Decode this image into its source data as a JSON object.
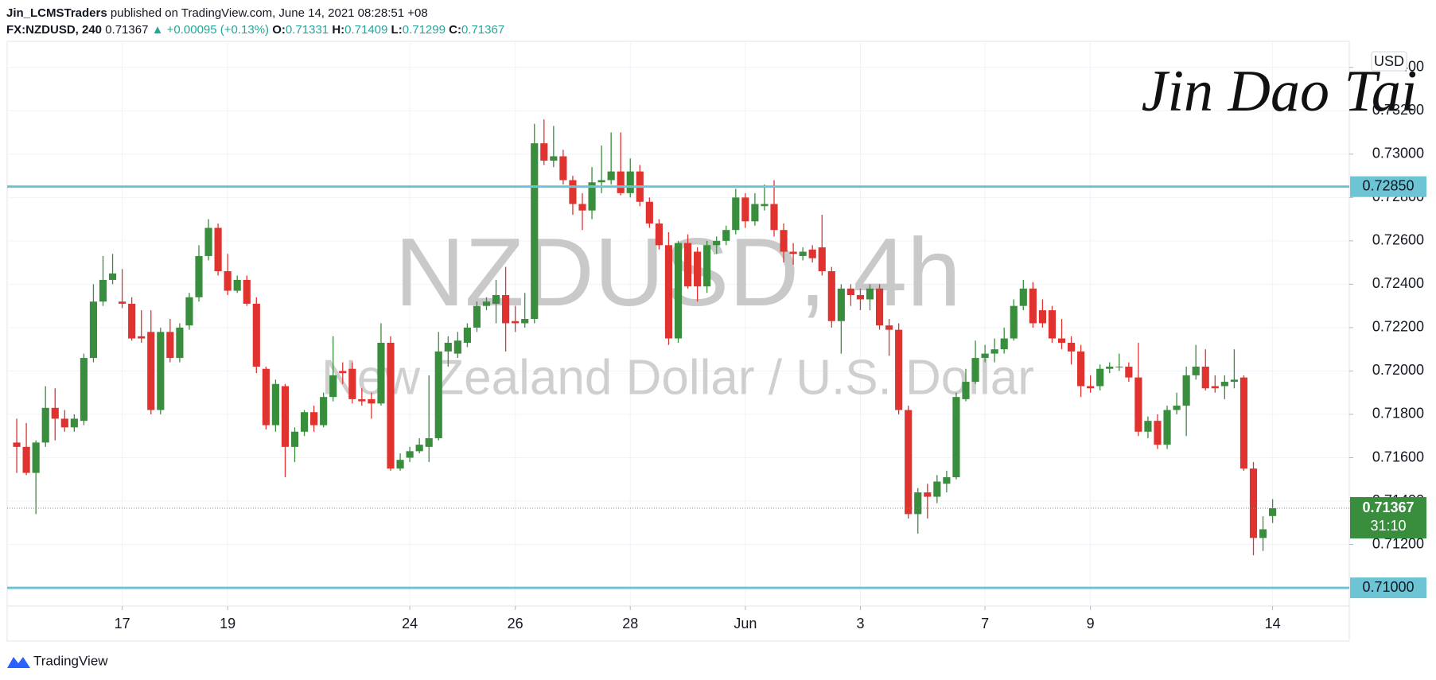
{
  "header": {
    "author": "Jin_LCMSTraders",
    "published": "published on TradingView.com, June 14, 2021 08:28:51 +08",
    "symbol": "FX:NZDUSD, 240",
    "price": "0.71367",
    "change": "▲ +0.00095 (+0.13%)",
    "open_label": "O:",
    "open": "0.71331",
    "high_label": "H:",
    "high": "0.71409",
    "low_label": "L:",
    "low": "0.71299",
    "close_label": "C:",
    "close": "0.71367"
  },
  "watermark": {
    "title": "NZDUSD, 4h",
    "subtitle": "New Zealand Dollar / U.S. Dollar"
  },
  "signature": "Jin Dao Tai",
  "footer": "TradingView",
  "chart_data": {
    "type": "candlestick",
    "currency": "USD",
    "up_color": "#388e3c",
    "down_color": "#e0332f",
    "line_color": "#6cc4d4",
    "grid": true,
    "ylim": [
      0.70916,
      0.7352
    ],
    "yticks": [
      {
        "value": 0.712,
        "label": "0.71200"
      },
      {
        "value": 0.714,
        "label": "0.71400"
      },
      {
        "value": 0.716,
        "label": "0.71600"
      },
      {
        "value": 0.718,
        "label": "0.71800"
      },
      {
        "value": 0.72,
        "label": "0.72000"
      },
      {
        "value": 0.722,
        "label": "0.72200"
      },
      {
        "value": 0.724,
        "label": "0.72400"
      },
      {
        "value": 0.726,
        "label": "0.72600"
      },
      {
        "value": 0.728,
        "label": "0.72800"
      },
      {
        "value": 0.73,
        "label": "0.73000"
      },
      {
        "value": 0.732,
        "label": "0.73200"
      },
      {
        "value": 0.734,
        "label": "0.73400"
      }
    ],
    "xlim": [
      -1,
      139
    ],
    "xticks": [
      {
        "value": 11,
        "label": "17"
      },
      {
        "value": 22,
        "label": "19"
      },
      {
        "value": 41,
        "label": "24"
      },
      {
        "value": 52,
        "label": "26"
      },
      {
        "value": 64,
        "label": "28"
      },
      {
        "value": 76,
        "label": "Jun"
      },
      {
        "value": 88,
        "label": "3"
      },
      {
        "value": 101,
        "label": "7"
      },
      {
        "value": 112,
        "label": "9"
      },
      {
        "value": 131,
        "label": "14"
      }
    ],
    "hlines": [
      {
        "value": 0.7285,
        "label": "0.72850"
      },
      {
        "value": 0.71,
        "label": "0.71000"
      }
    ],
    "last": {
      "value": 0.71367,
      "label": "0.71367",
      "countdown": "31:10"
    },
    "candles": [
      [
        0.7167,
        0.7178,
        0.7153,
        0.7165
      ],
      [
        0.7165,
        0.7176,
        0.7152,
        0.7153
      ],
      [
        0.7153,
        0.7168,
        0.7134,
        0.7167
      ],
      [
        0.7167,
        0.7193,
        0.7165,
        0.7183
      ],
      [
        0.7183,
        0.7192,
        0.7168,
        0.7178
      ],
      [
        0.7178,
        0.7182,
        0.7172,
        0.7174
      ],
      [
        0.7174,
        0.718,
        0.7172,
        0.7178
      ],
      [
        0.7177,
        0.7208,
        0.7175,
        0.7206
      ],
      [
        0.7206,
        0.724,
        0.7204,
        0.7232
      ],
      [
        0.7232,
        0.7253,
        0.723,
        0.7242
      ],
      [
        0.7242,
        0.7254,
        0.724,
        0.7245
      ],
      [
        0.7232,
        0.7247,
        0.7229,
        0.7231
      ],
      [
        0.7231,
        0.7234,
        0.7214,
        0.7215
      ],
      [
        0.7216,
        0.7228,
        0.7213,
        0.7215
      ],
      [
        0.7218,
        0.7228,
        0.718,
        0.7182
      ],
      [
        0.7182,
        0.722,
        0.718,
        0.7218
      ],
      [
        0.7218,
        0.7224,
        0.7204,
        0.7206
      ],
      [
        0.7206,
        0.7222,
        0.7204,
        0.722
      ],
      [
        0.7221,
        0.7236,
        0.7219,
        0.7234
      ],
      [
        0.7234,
        0.7258,
        0.7232,
        0.7253
      ],
      [
        0.7253,
        0.727,
        0.7251,
        0.7266
      ],
      [
        0.7266,
        0.7268,
        0.7244,
        0.7246
      ],
      [
        0.7246,
        0.7254,
        0.7235,
        0.7237
      ],
      [
        0.7237,
        0.7244,
        0.7236,
        0.7242
      ],
      [
        0.7242,
        0.7244,
        0.723,
        0.7231
      ],
      [
        0.7231,
        0.7234,
        0.7199,
        0.7202
      ],
      [
        0.7201,
        0.7202,
        0.7173,
        0.7175
      ],
      [
        0.7175,
        0.7196,
        0.7172,
        0.7194
      ],
      [
        0.7193,
        0.7194,
        0.7151,
        0.7165
      ],
      [
        0.7165,
        0.7174,
        0.7158,
        0.7172
      ],
      [
        0.7172,
        0.7182,
        0.717,
        0.7181
      ],
      [
        0.7181,
        0.7184,
        0.7172,
        0.7175
      ],
      [
        0.7175,
        0.719,
        0.7174,
        0.7188
      ],
      [
        0.7188,
        0.7216,
        0.7186,
        0.7198
      ],
      [
        0.72,
        0.7204,
        0.7194,
        0.7199
      ],
      [
        0.7201,
        0.7204,
        0.7185,
        0.7187
      ],
      [
        0.7187,
        0.7192,
        0.7184,
        0.7186
      ],
      [
        0.7187,
        0.719,
        0.7178,
        0.7185
      ],
      [
        0.7185,
        0.7222,
        0.7184,
        0.7213
      ],
      [
        0.7213,
        0.7216,
        0.7154,
        0.7155
      ],
      [
        0.7155,
        0.7162,
        0.7154,
        0.7159
      ],
      [
        0.716,
        0.7165,
        0.7158,
        0.7163
      ],
      [
        0.7163,
        0.7169,
        0.7162,
        0.7166
      ],
      [
        0.7165,
        0.7198,
        0.7158,
        0.7169
      ],
      [
        0.7169,
        0.7218,
        0.7168,
        0.7209
      ],
      [
        0.7209,
        0.7216,
        0.7202,
        0.7213
      ],
      [
        0.7208,
        0.7218,
        0.7206,
        0.7214
      ],
      [
        0.7213,
        0.7222,
        0.7211,
        0.722
      ],
      [
        0.722,
        0.7232,
        0.7218,
        0.723
      ],
      [
        0.723,
        0.7234,
        0.7228,
        0.7232
      ],
      [
        0.7231,
        0.7242,
        0.7222,
        0.7235
      ],
      [
        0.7235,
        0.7248,
        0.7209,
        0.7222
      ],
      [
        0.7223,
        0.723,
        0.7218,
        0.7222
      ],
      [
        0.7222,
        0.7236,
        0.722,
        0.7224
      ],
      [
        0.7224,
        0.7314,
        0.7222,
        0.7305
      ],
      [
        0.7305,
        0.7316,
        0.7295,
        0.7297
      ],
      [
        0.7297,
        0.7313,
        0.7294,
        0.7299
      ],
      [
        0.7299,
        0.7302,
        0.7286,
        0.7288
      ],
      [
        0.7288,
        0.729,
        0.7272,
        0.7277
      ],
      [
        0.7277,
        0.7282,
        0.7265,
        0.7274
      ],
      [
        0.7274,
        0.7294,
        0.727,
        0.7287
      ],
      [
        0.7287,
        0.7304,
        0.7282,
        0.7288
      ],
      [
        0.7288,
        0.731,
        0.7286,
        0.7292
      ],
      [
        0.7292,
        0.731,
        0.7281,
        0.7282
      ],
      [
        0.7282,
        0.7298,
        0.728,
        0.7292
      ],
      [
        0.7292,
        0.7295,
        0.7276,
        0.7278
      ],
      [
        0.7278,
        0.728,
        0.7266,
        0.7268
      ],
      [
        0.7268,
        0.727,
        0.7256,
        0.7258
      ],
      [
        0.7258,
        0.7264,
        0.7212,
        0.7215
      ],
      [
        0.7215,
        0.726,
        0.7213,
        0.7259
      ],
      [
        0.7259,
        0.7263,
        0.7238,
        0.7239
      ],
      [
        0.7255,
        0.7257,
        0.7232,
        0.7239
      ],
      [
        0.7239,
        0.726,
        0.7236,
        0.7258
      ],
      [
        0.7258,
        0.7262,
        0.7254,
        0.726
      ],
      [
        0.726,
        0.7267,
        0.7258,
        0.7265
      ],
      [
        0.7265,
        0.7284,
        0.7263,
        0.728
      ],
      [
        0.728,
        0.7282,
        0.7266,
        0.7269
      ],
      [
        0.7269,
        0.7282,
        0.7267,
        0.7277
      ],
      [
        0.7276,
        0.7286,
        0.7274,
        0.7277
      ],
      [
        0.7277,
        0.7288,
        0.7262,
        0.7265
      ],
      [
        0.7265,
        0.7268,
        0.725,
        0.7255
      ],
      [
        0.7255,
        0.7259,
        0.7249,
        0.7254
      ],
      [
        0.7253,
        0.7257,
        0.7251,
        0.7255
      ],
      [
        0.7256,
        0.7258,
        0.725,
        0.7252
      ],
      [
        0.7257,
        0.7272,
        0.7244,
        0.7246
      ],
      [
        0.7246,
        0.7248,
        0.722,
        0.7223
      ],
      [
        0.7223,
        0.724,
        0.7208,
        0.7238
      ],
      [
        0.7238,
        0.724,
        0.723,
        0.7235
      ],
      [
        0.7235,
        0.7238,
        0.7228,
        0.7233
      ],
      [
        0.7233,
        0.724,
        0.7228,
        0.7238
      ],
      [
        0.7238,
        0.724,
        0.7219,
        0.7221
      ],
      [
        0.7221,
        0.7224,
        0.7207,
        0.7219
      ],
      [
        0.7219,
        0.7222,
        0.718,
        0.7182
      ],
      [
        0.7182,
        0.7184,
        0.7132,
        0.7134
      ],
      [
        0.7134,
        0.7146,
        0.7125,
        0.7144
      ],
      [
        0.7144,
        0.7148,
        0.7132,
        0.7142
      ],
      [
        0.7142,
        0.7152,
        0.7139,
        0.7149
      ],
      [
        0.7148,
        0.7154,
        0.7144,
        0.7151
      ],
      [
        0.7151,
        0.719,
        0.715,
        0.7188
      ],
      [
        0.7187,
        0.7201,
        0.7186,
        0.7195
      ],
      [
        0.7195,
        0.7214,
        0.7194,
        0.7206
      ],
      [
        0.7206,
        0.7212,
        0.7204,
        0.7208
      ],
      [
        0.7208,
        0.7215,
        0.7204,
        0.721
      ],
      [
        0.721,
        0.722,
        0.7208,
        0.7215
      ],
      [
        0.7215,
        0.7233,
        0.7214,
        0.723
      ],
      [
        0.723,
        0.7242,
        0.7228,
        0.7238
      ],
      [
        0.7238,
        0.7241,
        0.722,
        0.7222
      ],
      [
        0.7228,
        0.7233,
        0.722,
        0.7222
      ],
      [
        0.7228,
        0.723,
        0.7213,
        0.7215
      ],
      [
        0.7215,
        0.7224,
        0.721,
        0.7213
      ],
      [
        0.7213,
        0.7216,
        0.7203,
        0.7209
      ],
      [
        0.7209,
        0.7212,
        0.7188,
        0.7193
      ],
      [
        0.7193,
        0.7198,
        0.719,
        0.7192
      ],
      [
        0.7193,
        0.7203,
        0.7191,
        0.7201
      ],
      [
        0.7201,
        0.7204,
        0.7199,
        0.7202
      ],
      [
        0.7202,
        0.7208,
        0.72,
        0.7202
      ],
      [
        0.7202,
        0.7204,
        0.7195,
        0.7197
      ],
      [
        0.7197,
        0.7213,
        0.717,
        0.7172
      ],
      [
        0.7172,
        0.7179,
        0.7169,
        0.7177
      ],
      [
        0.7177,
        0.718,
        0.7164,
        0.7166
      ],
      [
        0.7166,
        0.7184,
        0.7164,
        0.7182
      ],
      [
        0.7182,
        0.719,
        0.718,
        0.7184
      ],
      [
        0.7184,
        0.7202,
        0.717,
        0.7198
      ],
      [
        0.7198,
        0.7212,
        0.7196,
        0.7202
      ],
      [
        0.7202,
        0.721,
        0.7191,
        0.7192
      ],
      [
        0.7193,
        0.7198,
        0.719,
        0.7192
      ],
      [
        0.7193,
        0.7198,
        0.7187,
        0.7195
      ],
      [
        0.7195,
        0.721,
        0.7192,
        0.7196
      ],
      [
        0.7197,
        0.7198,
        0.7154,
        0.7155
      ],
      [
        0.7155,
        0.7158,
        0.7115,
        0.7123
      ],
      [
        0.7123,
        0.7133,
        0.7117,
        0.7127
      ],
      [
        0.71331,
        0.71409,
        0.71299,
        0.71367
      ]
    ]
  }
}
